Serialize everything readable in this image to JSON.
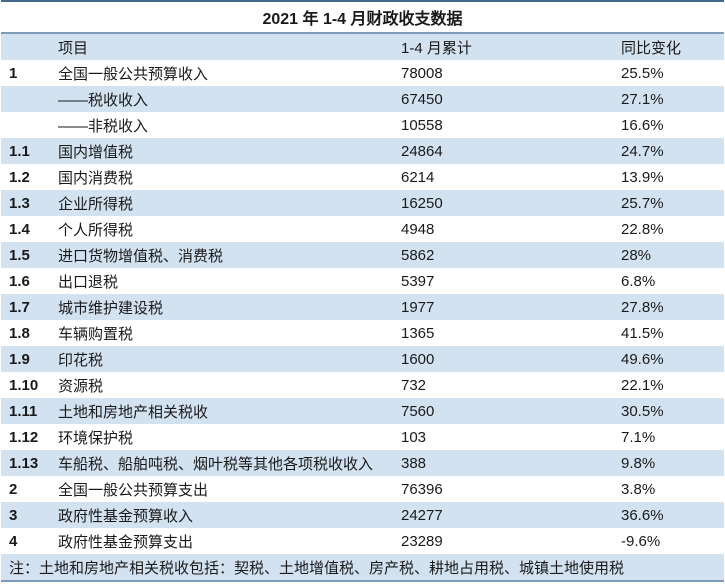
{
  "table": {
    "title": "2021 年 1-4 月财政收支数据",
    "columns": {
      "item": "项目",
      "value": "1-4 月累计",
      "change": "同比变化"
    },
    "rows": [
      {
        "no": "1",
        "item": "全国一般公共预算收入",
        "value": "78008",
        "change": "25.5%"
      },
      {
        "no": "",
        "item": "——税收收入",
        "value": "67450",
        "change": "27.1%"
      },
      {
        "no": "",
        "item": "——非税收入",
        "value": "10558",
        "change": "16.6%"
      },
      {
        "no": "1.1",
        "item": "国内增值税",
        "value": "24864",
        "change": "24.7%"
      },
      {
        "no": "1.2",
        "item": "国内消费税",
        "value": "6214",
        "change": "13.9%"
      },
      {
        "no": "1.3",
        "item": "企业所得税",
        "value": "16250",
        "change": "25.7%"
      },
      {
        "no": "1.4",
        "item": "个人所得税",
        "value": "4948",
        "change": "22.8%"
      },
      {
        "no": "1.5",
        "item": "进口货物增值税、消费税",
        "value": "5862",
        "change": "28%"
      },
      {
        "no": "1.6",
        "item": "出口退税",
        "value": "5397",
        "change": "6.8%"
      },
      {
        "no": "1.7",
        "item": "城市维护建设税",
        "value": "1977",
        "change": "27.8%"
      },
      {
        "no": "1.8",
        "item": "车辆购置税",
        "value": "1365",
        "change": "41.5%"
      },
      {
        "no": "1.9",
        "item": "印花税",
        "value": "1600",
        "change": "49.6%"
      },
      {
        "no": "1.10",
        "item": "资源税",
        "value": "732",
        "change": "22.1%"
      },
      {
        "no": "1.11",
        "item": "土地和房地产相关税收",
        "value": "7560",
        "change": "30.5%"
      },
      {
        "no": "1.12",
        "item": "环境保护税",
        "value": "103",
        "change": "7.1%"
      },
      {
        "no": "1.13",
        "item": "车船税、船舶吨税、烟叶税等其他各项税收收入",
        "value": "388",
        "change": "9.8%"
      },
      {
        "no": "2",
        "item": "全国一般公共预算支出",
        "value": "76396",
        "change": "3.8%"
      },
      {
        "no": "3",
        "item": "政府性基金预算收入",
        "value": "24277",
        "change": "36.6%"
      },
      {
        "no": "4",
        "item": "政府性基金预算支出",
        "value": "23289",
        "change": "-9.6%"
      }
    ],
    "note": "注：土地和房地产相关税收包括：契税、土地增值税、房产税、耕地占用税、城镇土地使用税"
  },
  "colors": {
    "band_blue": "#d3e2f1",
    "top_border": "#44688c",
    "mid_border": "#7e9cb9",
    "text": "#1a1a1a"
  }
}
